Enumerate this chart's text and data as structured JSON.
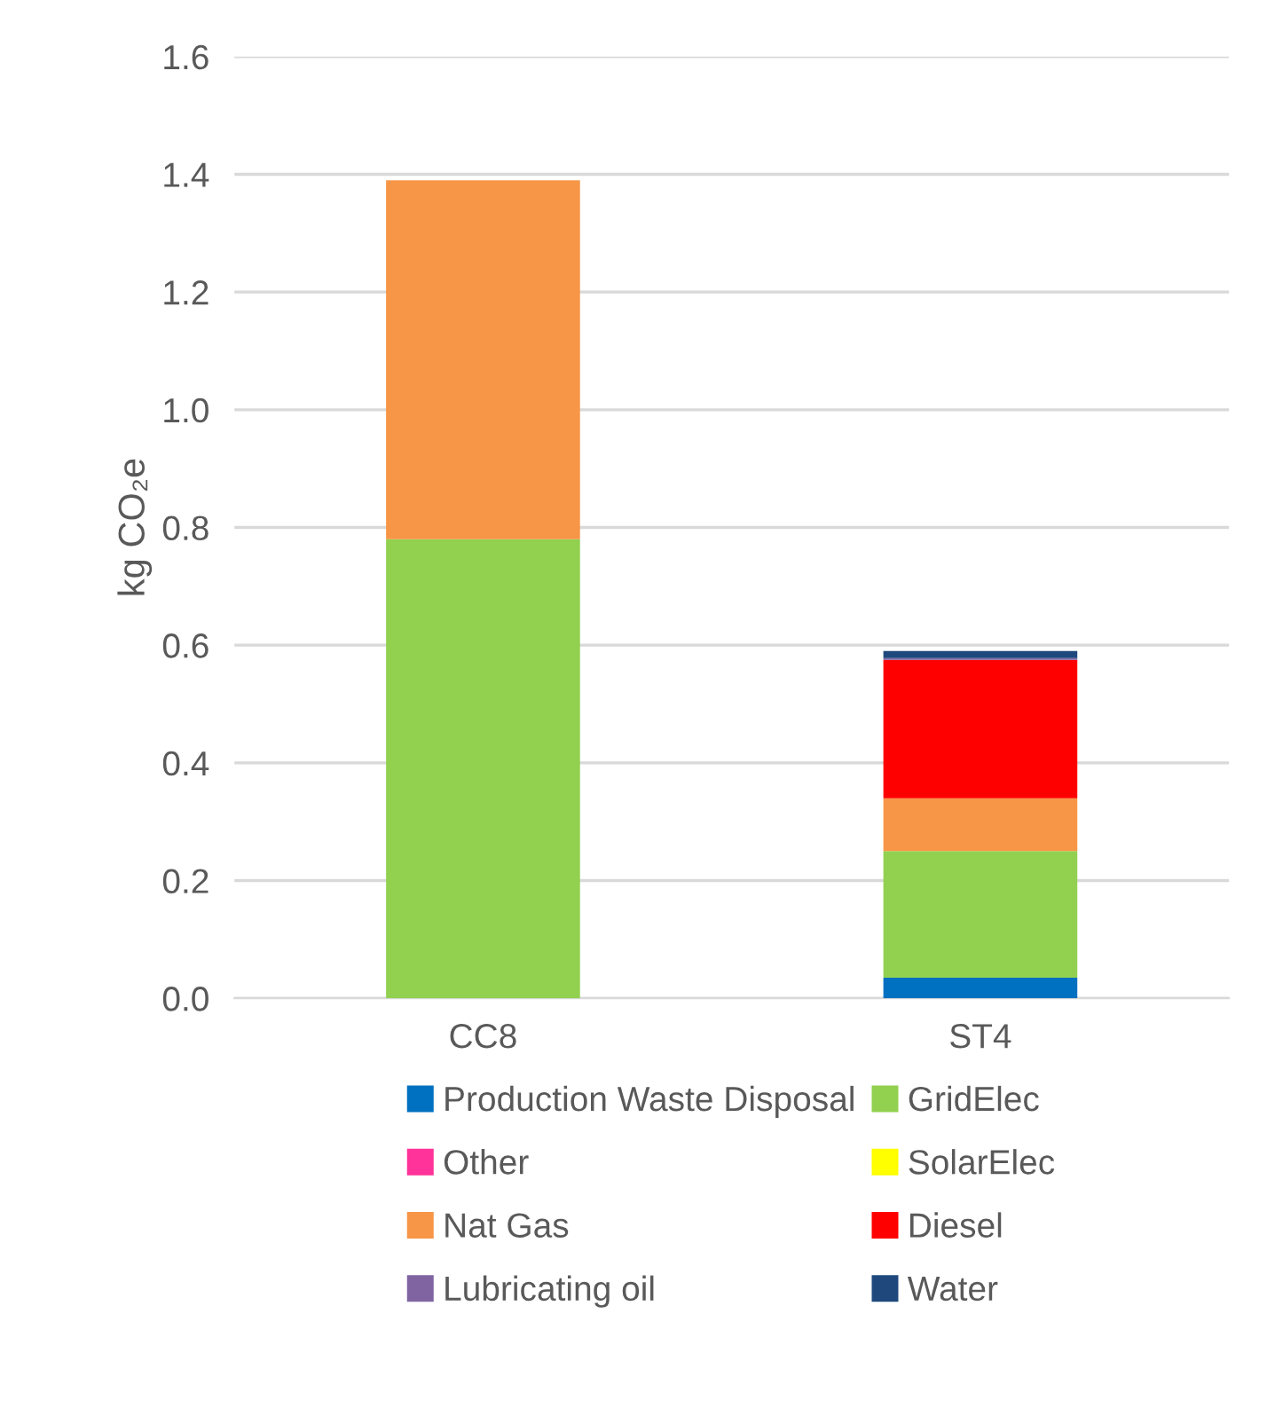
{
  "chart_data": {
    "type": "bar",
    "stacked": true,
    "ylabel": "kg CO₂e",
    "categories": [
      "CC8",
      "ST4"
    ],
    "series": [
      {
        "name": "Production Waste Disposal",
        "color": "#0070c0",
        "values": [
          0,
          0.035
        ]
      },
      {
        "name": "GridElec",
        "color": "#92d050",
        "values": [
          0.78,
          0.215
        ]
      },
      {
        "name": "Other",
        "color": "#ff3399",
        "values": [
          0,
          0
        ]
      },
      {
        "name": "SolarElec",
        "color": "#ffff00",
        "values": [
          0,
          0
        ]
      },
      {
        "name": "Nat Gas",
        "color": "#f79646",
        "values": [
          0.61,
          0.09
        ]
      },
      {
        "name": "Diesel",
        "color": "#ff0000",
        "values": [
          0,
          0.235
        ]
      },
      {
        "name": "Lubricating oil",
        "color": "#8064a2",
        "values": [
          0,
          0.003
        ]
      },
      {
        "name": "Water",
        "color": "#1f497d",
        "values": [
          0,
          0.012
        ]
      }
    ],
    "ylim": [
      0,
      1.6
    ],
    "yticks": [
      {
        "value": 0,
        "label": "0.0"
      },
      {
        "value": 0.2,
        "label": "0.2"
      },
      {
        "value": 0.4,
        "label": "0.4"
      },
      {
        "value": 0.6,
        "label": "0.6"
      },
      {
        "value": 0.8,
        "label": "0.8"
      },
      {
        "value": 1.0,
        "label": "1.0"
      },
      {
        "value": 1.2,
        "label": "1.2"
      },
      {
        "value": 1.4,
        "label": "1.4"
      },
      {
        "value": 1.6,
        "label": "1.6"
      }
    ],
    "grid": "y",
    "legend": "bottom"
  }
}
